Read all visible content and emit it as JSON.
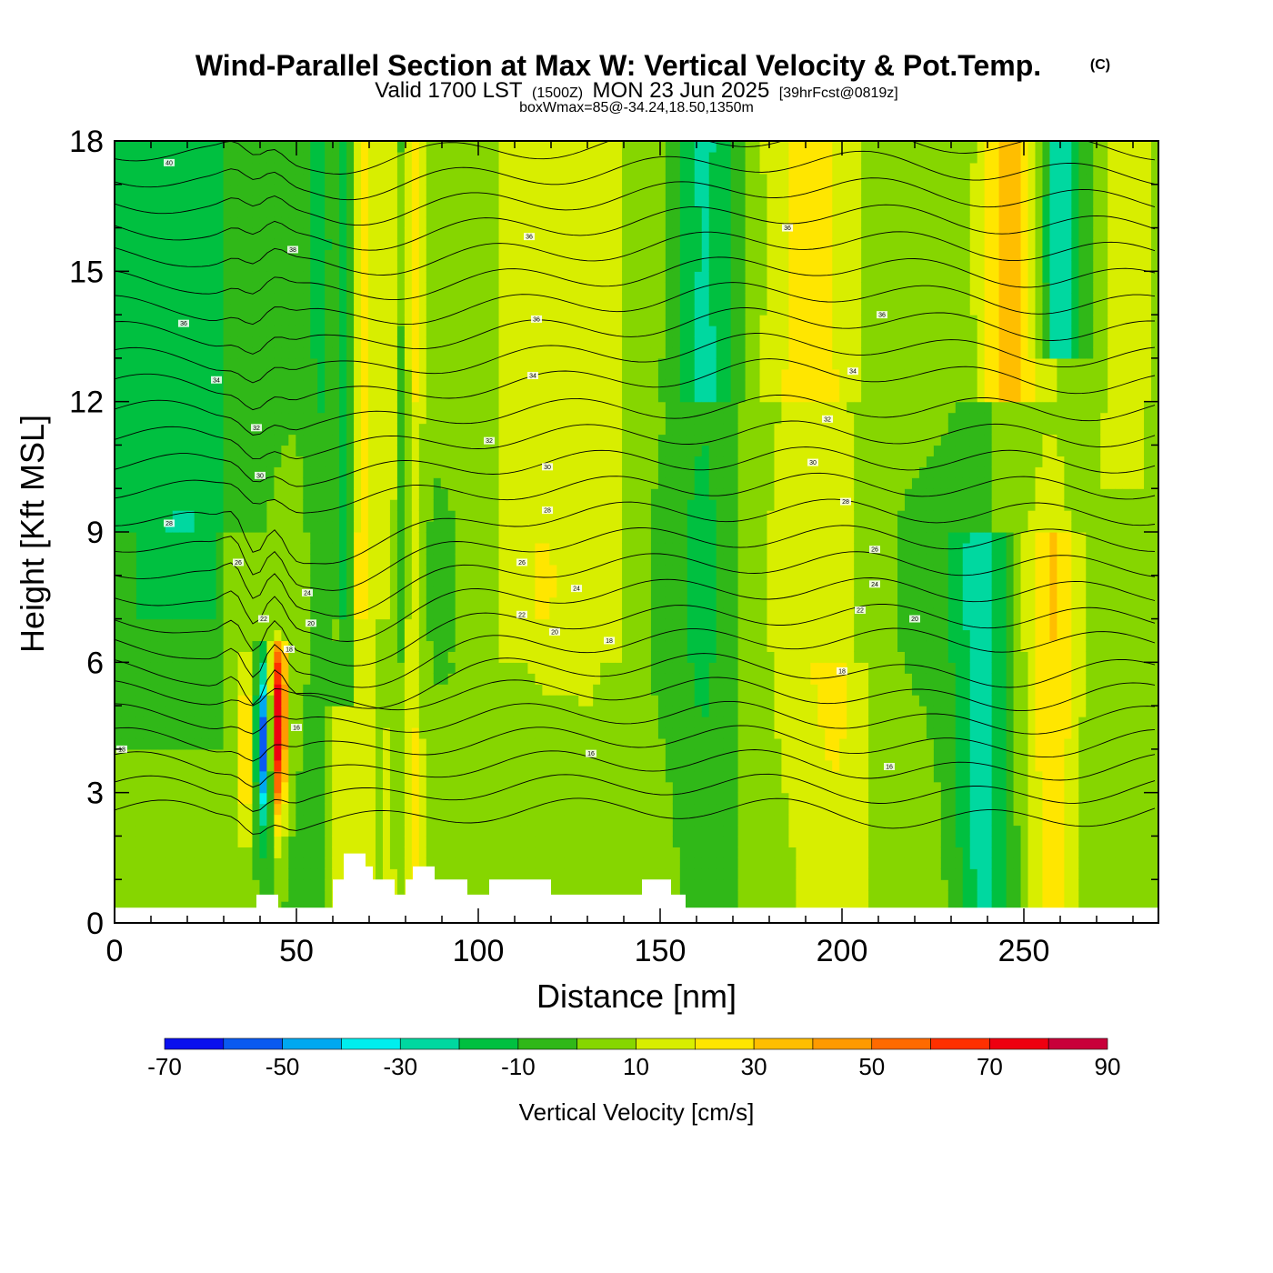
{
  "title": {
    "main": "Wind-Parallel Section at Max W: Vertical Velocity & Pot.Temp.",
    "copyright": "(C)",
    "valid_prefix": "Valid 1700 LST",
    "valid_utc": "(1500Z)",
    "valid_date": "MON 23 Jun 2025",
    "forecast": "[39hrFcst@0819z]",
    "box_info": "boxWmax=85@-34.24,18.50,1350m"
  },
  "chart_data": {
    "type": "heatmap",
    "xlabel": "Distance [nm]",
    "ylabel": "Height [Kft MSL]",
    "xlim": [
      0,
      287
    ],
    "ylim": [
      0,
      18
    ],
    "x_ticks": [
      "0",
      "50",
      "100",
      "150",
      "200",
      "250"
    ],
    "x_tick_values": [
      0,
      50,
      100,
      150,
      200,
      250
    ],
    "y_ticks": [
      "0",
      "3",
      "6",
      "9",
      "12",
      "15",
      "18"
    ],
    "y_tick_values": [
      0,
      3,
      6,
      9,
      12,
      15,
      18
    ],
    "colorbar": {
      "title": "Vertical Velocity [cm/s]",
      "labels": [
        "-70",
        "-50",
        "-30",
        "-10",
        "10",
        "30",
        "50",
        "70",
        "90"
      ],
      "bounds": [
        -70,
        -60,
        -50,
        -40,
        -30,
        -20,
        -10,
        0,
        10,
        20,
        30,
        40,
        50,
        60,
        70,
        80,
        90
      ],
      "colors": [
        "#0a10ee",
        "#0a5af0",
        "#00a8f0",
        "#00eeee",
        "#00d8a0",
        "#00c040",
        "#30b818",
        "#86d600",
        "#d8ee00",
        "#ffe600",
        "#ffbe00",
        "#ff9a00",
        "#ff6a00",
        "#ff3000",
        "#ee0010",
        "#c8003a"
      ]
    },
    "contours": {
      "quantity": "Pot.Temp.",
      "labels": [
        {
          "x": 15,
          "y": 17.5,
          "text": "40"
        },
        {
          "x": 49,
          "y": 15.5,
          "text": "38"
        },
        {
          "x": 114,
          "y": 15.8,
          "text": "36"
        },
        {
          "x": 185,
          "y": 16.0,
          "text": "36"
        },
        {
          "x": 19,
          "y": 13.8,
          "text": "36"
        },
        {
          "x": 116,
          "y": 13.9,
          "text": "36"
        },
        {
          "x": 211,
          "y": 14.0,
          "text": "36"
        },
        {
          "x": 28,
          "y": 12.5,
          "text": "34"
        },
        {
          "x": 115,
          "y": 12.6,
          "text": "34"
        },
        {
          "x": 203,
          "y": 12.7,
          "text": "34"
        },
        {
          "x": 39,
          "y": 11.4,
          "text": "32"
        },
        {
          "x": 196,
          "y": 11.6,
          "text": "32"
        },
        {
          "x": 103,
          "y": 11.1,
          "text": "32"
        },
        {
          "x": 40,
          "y": 10.3,
          "text": "30"
        },
        {
          "x": 119,
          "y": 10.5,
          "text": "30"
        },
        {
          "x": 192,
          "y": 10.6,
          "text": "30"
        },
        {
          "x": 15,
          "y": 9.2,
          "text": "28"
        },
        {
          "x": 119,
          "y": 9.5,
          "text": "28"
        },
        {
          "x": 201,
          "y": 9.7,
          "text": "28"
        },
        {
          "x": 34,
          "y": 8.3,
          "text": "26"
        },
        {
          "x": 112,
          "y": 8.3,
          "text": "26"
        },
        {
          "x": 209,
          "y": 8.6,
          "text": "26"
        },
        {
          "x": 53,
          "y": 7.6,
          "text": "24"
        },
        {
          "x": 127,
          "y": 7.7,
          "text": "24"
        },
        {
          "x": 209,
          "y": 7.8,
          "text": "24"
        },
        {
          "x": 41,
          "y": 7.0,
          "text": "22"
        },
        {
          "x": 112,
          "y": 7.1,
          "text": "22"
        },
        {
          "x": 205,
          "y": 7.2,
          "text": "22"
        },
        {
          "x": 54,
          "y": 6.9,
          "text": "20"
        },
        {
          "x": 121,
          "y": 6.7,
          "text": "20"
        },
        {
          "x": 220,
          "y": 7.0,
          "text": "20"
        },
        {
          "x": 48,
          "y": 6.3,
          "text": "18"
        },
        {
          "x": 136,
          "y": 6.5,
          "text": "18"
        },
        {
          "x": 200,
          "y": 5.8,
          "text": "18"
        },
        {
          "x": 2,
          "y": 4.0,
          "text": "18"
        },
        {
          "x": 50,
          "y": 4.5,
          "text": "16"
        },
        {
          "x": 131,
          "y": 3.9,
          "text": "16"
        },
        {
          "x": 213,
          "y": 3.6,
          "text": "16"
        }
      ]
    },
    "terrain_profile_kft": [
      [
        0,
        0.35
      ],
      [
        39,
        0.35
      ],
      [
        39,
        0.65
      ],
      [
        45,
        0.65
      ],
      [
        45,
        0.35
      ],
      [
        60,
        0.35
      ],
      [
        60,
        1.0
      ],
      [
        63,
        1.0
      ],
      [
        63,
        1.6
      ],
      [
        69,
        1.6
      ],
      [
        69,
        1.3
      ],
      [
        71,
        1.3
      ],
      [
        71,
        1.0
      ],
      [
        77,
        1.0
      ],
      [
        77,
        0.65
      ],
      [
        80,
        0.65
      ],
      [
        80,
        1.0
      ],
      [
        82,
        1.0
      ],
      [
        82,
        1.3
      ],
      [
        88,
        1.3
      ],
      [
        88,
        1.0
      ],
      [
        97,
        1.0
      ],
      [
        97,
        0.65
      ],
      [
        103,
        0.65
      ],
      [
        103,
        1.0
      ],
      [
        120,
        1.0
      ],
      [
        120,
        0.65
      ],
      [
        145,
        0.65
      ],
      [
        145,
        1.0
      ],
      [
        153,
        1.0
      ],
      [
        153,
        0.65
      ],
      [
        157,
        0.65
      ],
      [
        157,
        0.35
      ],
      [
        287,
        0.35
      ]
    ]
  }
}
